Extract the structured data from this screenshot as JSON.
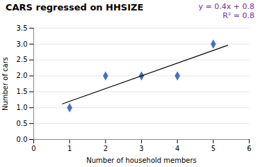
{
  "chart_data": {
    "type": "scatter",
    "title": "CARS regressed on HHSIZE",
    "xlabel": "Number of household members",
    "ylabel": "Number of cars",
    "series": [
      {
        "type": "scatter",
        "x": [
          1,
          2,
          3,
          4,
          5
        ],
        "values": [
          1,
          2,
          2,
          2,
          3
        ],
        "color": "#4472C4",
        "marker": "diamond"
      },
      {
        "type": "line",
        "x": [
          0.8,
          5.4
        ],
        "values": [
          1.12,
          2.96
        ],
        "color": "#000000"
      }
    ],
    "annotations": [
      {
        "text": "y = 0.4x + 0.8",
        "color": "#7030A0"
      },
      {
        "text": "R² = 0.8",
        "color": "#7030A0"
      }
    ],
    "xlim": [
      0,
      6
    ],
    "ylim": [
      0,
      3.5
    ],
    "xticks": [
      0,
      1,
      2,
      3,
      4,
      5,
      6
    ],
    "yticks": [
      {
        "value": 0,
        "label": "0.0"
      },
      {
        "value": 0.5,
        "label": "0.5"
      },
      {
        "value": 1,
        "label": "1.0"
      },
      {
        "value": 1.5,
        "label": "1.5"
      },
      {
        "value": 2,
        "label": "2.0"
      },
      {
        "value": 2.5,
        "label": "2.5"
      },
      {
        "value": 3,
        "label": "3.0"
      },
      {
        "value": 3.5,
        "label": "3.5"
      }
    ],
    "grid": "y"
  }
}
